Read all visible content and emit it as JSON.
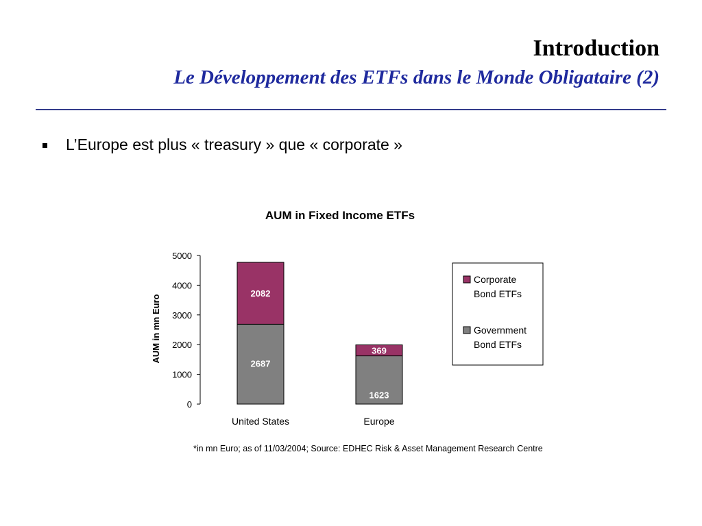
{
  "slide": {
    "title": "Introduction",
    "subtitle": "Le Développement des ETFs dans le Monde Obligataire (2)",
    "bullet": "L’Europe est plus « treasury » que « corporate »",
    "footnote": "*in mn Euro; as of 11/03/2004; Source: EDHEC Risk & Asset Management Research Centre"
  },
  "chart_data": {
    "type": "bar",
    "stacked": true,
    "title": "AUM in Fixed Income ETFs",
    "ylabel": "AUM in mn Euro",
    "xlabel": "",
    "ylim": [
      0,
      5000
    ],
    "yticks": [
      0,
      1000,
      2000,
      3000,
      4000,
      5000
    ],
    "grid": false,
    "legend": "right",
    "categories": [
      "United States",
      "Europe"
    ],
    "series": [
      {
        "name": "Government Bond ETFs",
        "values": [
          2687,
          1623
        ],
        "color": "#808080"
      },
      {
        "name": "Corporate Bond ETFs",
        "values": [
          2082,
          369
        ],
        "color": "#993366"
      }
    ],
    "legend_order": [
      "Corporate Bond ETFs",
      "Government Bond ETFs"
    ]
  }
}
